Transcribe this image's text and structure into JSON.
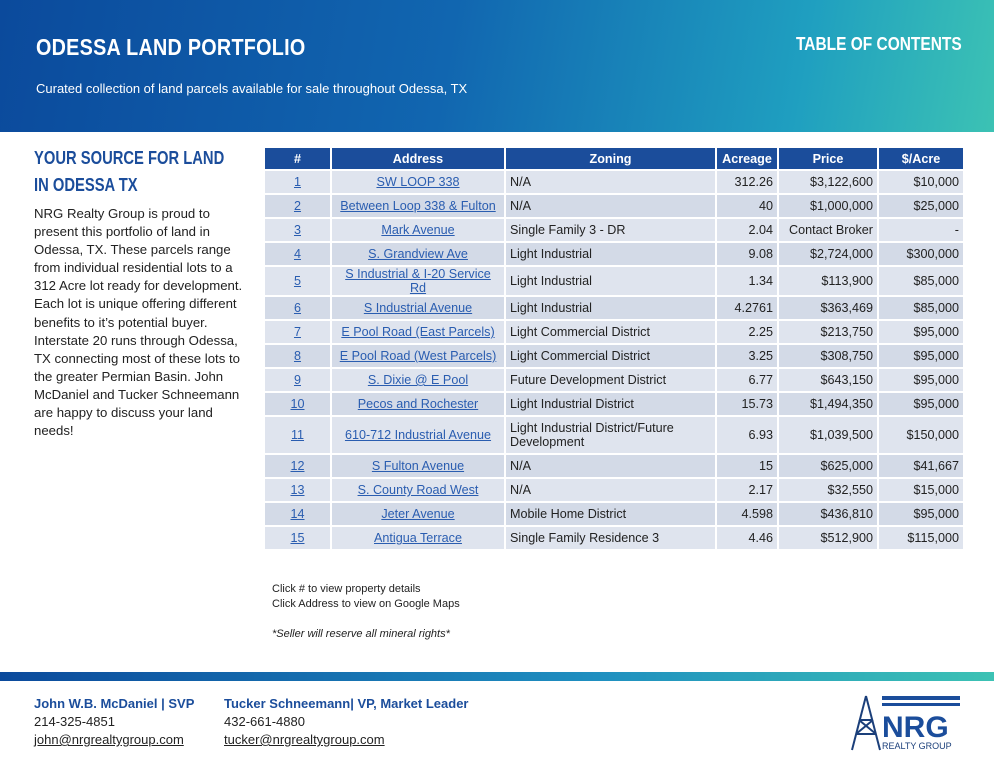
{
  "header": {
    "title": "ODESSA LAND PORTFOLIO",
    "subtitle": "Curated collection of land parcels available for sale throughout Odessa, TX",
    "nav": "TABLE OF CONTENTS"
  },
  "sidebar": {
    "heading": "YOUR SOURCE FOR LAND IN ODESSA TX",
    "body": "NRG Realty Group is proud to present this portfolio of land in Odessa, TX. These parcels range from individual residential lots to a 312 Acre lot ready for development. Each lot is unique offering different benefits to it’s potential buyer. Interstate 20 runs through Odessa, TX connecting most of these lots to the greater Permian Basin. John McDaniel and Tucker Schneemann are happy to discuss your land needs!"
  },
  "table": {
    "columns": [
      "#",
      "Address",
      "Zoning",
      "Acreage",
      "Price",
      "$/Acre"
    ],
    "rows": [
      [
        "1",
        "SW LOOP 338",
        "N/A",
        "312.26",
        "$3,122,600",
        "$10,000"
      ],
      [
        "2",
        "Between Loop 338 & Fulton",
        "N/A",
        "40",
        "$1,000,000",
        "$25,000"
      ],
      [
        "3",
        "Mark Avenue",
        "Single Family 3 - DR",
        "2.04",
        "Contact Broker",
        "-"
      ],
      [
        "4",
        "S. Grandview Ave",
        "Light Industrial",
        "9.08",
        "$2,724,000",
        "$300,000"
      ],
      [
        "5",
        "S Industrial & I-20 Service Rd",
        "Light Industrial",
        "1.34",
        "$113,900",
        "$85,000"
      ],
      [
        "6",
        "S Industrial Avenue",
        "Light Industrial",
        "4.2761",
        "$363,469",
        "$85,000"
      ],
      [
        "7",
        "E Pool Road (East Parcels)",
        "Light Commercial District",
        "2.25",
        "$213,750",
        "$95,000"
      ],
      [
        "8",
        "E Pool Road (West Parcels)",
        "Light Commercial District",
        "3.25",
        "$308,750",
        "$95,000"
      ],
      [
        "9",
        "S. Dixie @ E Pool",
        "Future Development District",
        "6.77",
        "$643,150",
        "$95,000"
      ],
      [
        "10",
        "Pecos and Rochester",
        "Light Industrial District",
        "15.73",
        "$1,494,350",
        "$95,000"
      ],
      [
        "11",
        "610-712 Industrial Avenue",
        "Light Industrial District/Future Development",
        "6.93",
        "$1,039,500",
        "$150,000"
      ],
      [
        "12",
        "S Fulton Avenue",
        "N/A",
        "15",
        "$625,000",
        "$41,667"
      ],
      [
        "13",
        "S. County Road West",
        "N/A",
        "2.17",
        "$32,550",
        "$15,000"
      ],
      [
        "14",
        "Jeter Avenue",
        "Mobile Home District",
        "4.598",
        "$436,810",
        "$95,000"
      ],
      [
        "15",
        "Antigua Terrace",
        "Single Family Residence 3",
        "4.46",
        "$512,900",
        "$115,000"
      ]
    ]
  },
  "notes": {
    "click_number": "Click # to view property details",
    "click_address": "Click Address to view on Google Maps",
    "mineral": "*Seller will reserve all mineral rights*"
  },
  "footer": {
    "contacts": [
      {
        "name": "John W.B. McDaniel | SVP",
        "phone": "214-325-4851",
        "email": "john@nrgrealtygroup.com"
      },
      {
        "name": "Tucker Schneemann| VP, Market Leader",
        "phone": "432-661-4880",
        "email": "tucker@nrgrealtygroup.com"
      }
    ],
    "logo": {
      "name": "NRG",
      "tagline": "REALTY GROUP"
    }
  }
}
